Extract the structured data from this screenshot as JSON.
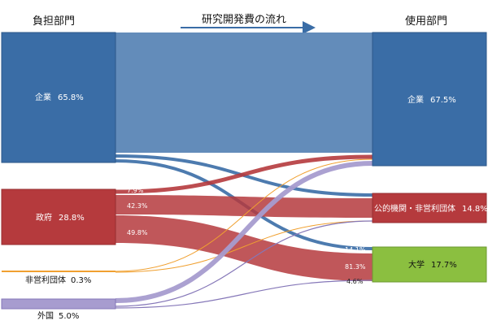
{
  "headers": {
    "source_title": "負担部門",
    "flow_title": "研究開発費の流れ",
    "use_title": "使用部門"
  },
  "sources": [
    {
      "name": "企業",
      "value": "65.8%"
    },
    {
      "name": "政府",
      "value": "28.8%"
    },
    {
      "name": "非営利団体",
      "value": "0.3%"
    },
    {
      "name": "外国",
      "value": "5.0%"
    }
  ],
  "targets": [
    {
      "name": "企業",
      "value": "67.5%"
    },
    {
      "name": "公的機関・非営利団体",
      "value": "14.8%"
    },
    {
      "name": "大学",
      "value": "17.7%"
    }
  ],
  "flow_labels": {
    "gov_to_company": "7.9%",
    "gov_to_public": "42.3%",
    "gov_to_university": "49.8%",
    "to_public_misc": "14.1%",
    "to_university_main": "81.3%",
    "to_university_misc": "4.6%"
  },
  "colors": {
    "company": "#3a6da6",
    "company_flow": "#5b86b6",
    "government": "#b53a3d",
    "university": "#8bbf40",
    "nonprofit": "#f0a030",
    "foreign": "#a79ccf"
  }
}
